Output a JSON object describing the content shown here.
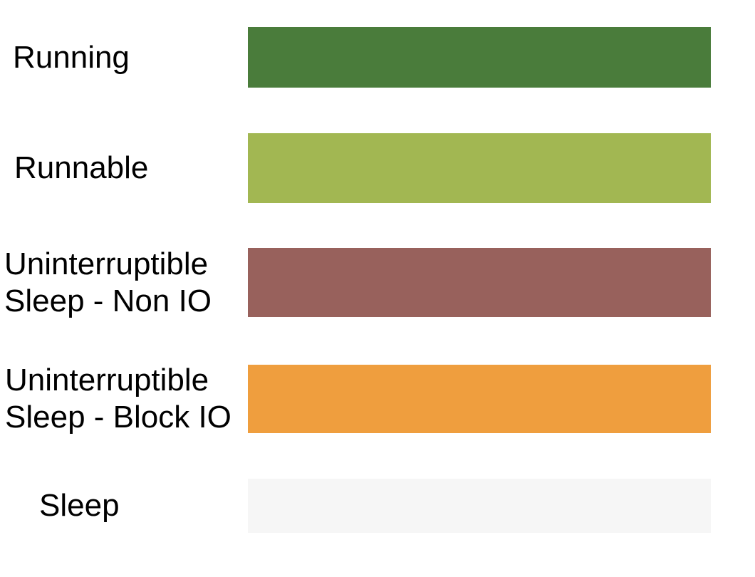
{
  "legend": {
    "background": "#ffffff",
    "text_color": "#000000",
    "rows": [
      {
        "id": "running",
        "lines": [
          "Running"
        ],
        "color": "#4a7c3b"
      },
      {
        "id": "runnable",
        "lines": [
          "Runnable"
        ],
        "color": "#a2b752"
      },
      {
        "id": "uninterruptible-sleep-non-io",
        "lines": [
          "Uninterruptible",
          "Sleep - Non IO"
        ],
        "color": "#98615c"
      },
      {
        "id": "uninterruptible-sleep-block-io",
        "lines": [
          "Uninterruptible",
          "Sleep - Block IO"
        ],
        "color": "#ef9e3e"
      },
      {
        "id": "sleep",
        "lines": [
          "Sleep"
        ],
        "color": "#f6f6f6"
      }
    ]
  }
}
